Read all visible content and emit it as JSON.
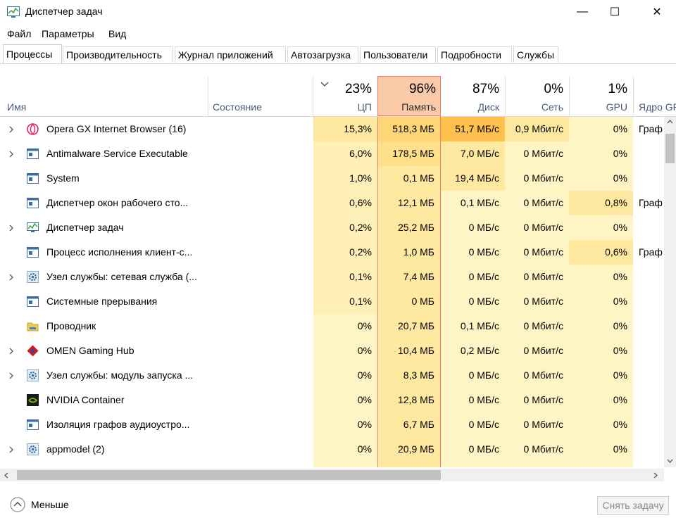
{
  "window": {
    "title": "Диспетчер задач",
    "minimize_glyph": "—",
    "maximize_glyph": "☐",
    "close_glyph": "✕"
  },
  "menu": [
    "Файл",
    "Параметры",
    "Вид"
  ],
  "tabs": [
    "Процессы",
    "Производительность",
    "Журнал приложений",
    "Автозагрузка",
    "Пользователи",
    "Подробности",
    "Службы"
  ],
  "active_tab": "Процессы",
  "columns": {
    "name": "Имя",
    "status": "Состояние",
    "cpu": {
      "pct": "23%",
      "label": "ЦП"
    },
    "mem": {
      "pct": "96%",
      "label": "Память"
    },
    "disk": {
      "pct": "87%",
      "label": "Диск"
    },
    "net": {
      "pct": "0%",
      "label": "Сеть"
    },
    "gpu": {
      "pct": "1%",
      "label": "GPU"
    },
    "gpu_engine": "Ядро GP"
  },
  "processes": [
    {
      "expand": true,
      "icon": "opera-gx-icon",
      "name": "Opera GX Internet Browser (16)",
      "cpu": "15,3%",
      "mem": "518,3 МБ",
      "disk": "51,7 МБ/с",
      "net": "0,9 Мбит/с",
      "gpu": "0%",
      "engine": "Граф"
    },
    {
      "expand": true,
      "icon": "app-window-icon",
      "name": "Antimalware Service Executable",
      "cpu": "6,0%",
      "mem": "178,5 МБ",
      "disk": "7,0 МБ/с",
      "net": "0 Мбит/с",
      "gpu": "0%",
      "engine": ""
    },
    {
      "expand": false,
      "icon": "app-window-icon",
      "name": "System",
      "cpu": "1,0%",
      "mem": "0,1 МБ",
      "disk": "19,4 МБ/с",
      "net": "0 Мбит/с",
      "gpu": "0%",
      "engine": ""
    },
    {
      "expand": false,
      "icon": "app-window-icon",
      "name": "Диспетчер окон рабочего сто...",
      "cpu": "0,6%",
      "mem": "12,1 МБ",
      "disk": "0,1 МБ/с",
      "net": "0 Мбит/с",
      "gpu": "0,8%",
      "engine": "Граф"
    },
    {
      "expand": true,
      "icon": "task-manager-icon",
      "name": "Диспетчер задач",
      "cpu": "0,2%",
      "mem": "25,2 МБ",
      "disk": "0 МБ/с",
      "net": "0 Мбит/с",
      "gpu": "0%",
      "engine": ""
    },
    {
      "expand": false,
      "icon": "app-window-icon",
      "name": "Процесс исполнения клиент-с...",
      "cpu": "0,2%",
      "mem": "1,0 МБ",
      "disk": "0 МБ/с",
      "net": "0 Мбит/с",
      "gpu": "0,6%",
      "engine": "Граф"
    },
    {
      "expand": true,
      "icon": "service-gear-icon",
      "name": "Узел службы: сетевая служба (...",
      "cpu": "0,1%",
      "mem": "7,4 МБ",
      "disk": "0 МБ/с",
      "net": "0 Мбит/с",
      "gpu": "0%",
      "engine": ""
    },
    {
      "expand": false,
      "icon": "app-window-icon",
      "name": "Системные прерывания",
      "cpu": "0,1%",
      "mem": "0 МБ",
      "disk": "0 МБ/с",
      "net": "0 Мбит/с",
      "gpu": "0%",
      "engine": ""
    },
    {
      "expand": false,
      "icon": "explorer-folder-icon",
      "name": "Проводник",
      "cpu": "0%",
      "mem": "20,7 МБ",
      "disk": "0,1 МБ/с",
      "net": "0 Мбит/с",
      "gpu": "0%",
      "engine": ""
    },
    {
      "expand": true,
      "icon": "omen-icon",
      "name": "OMEN Gaming Hub",
      "cpu": "0%",
      "mem": "10,4 МБ",
      "disk": "0,2 МБ/с",
      "net": "0 Мбит/с",
      "gpu": "0%",
      "engine": ""
    },
    {
      "expand": true,
      "icon": "service-gear-icon",
      "name": "Узел службы: модуль запуска ...",
      "cpu": "0%",
      "mem": "8,3 МБ",
      "disk": "0 МБ/с",
      "net": "0 Мбит/с",
      "gpu": "0%",
      "engine": ""
    },
    {
      "expand": false,
      "icon": "nvidia-icon",
      "name": "NVIDIA Container",
      "cpu": "0%",
      "mem": "12,8 МБ",
      "disk": "0 МБ/с",
      "net": "0 Мбит/с",
      "gpu": "0%",
      "engine": ""
    },
    {
      "expand": false,
      "icon": "app-window-icon",
      "name": "Изоляция графов аудиоустро...",
      "cpu": "0%",
      "mem": "6,7 МБ",
      "disk": "0 МБ/с",
      "net": "0 Мбит/с",
      "gpu": "0%",
      "engine": ""
    },
    {
      "expand": true,
      "icon": "service-gear-icon",
      "name": "appmodel (2)",
      "cpu": "0%",
      "mem": "20,9 МБ",
      "disk": "0 МБ/с",
      "net": "0 Мбит/с",
      "gpu": "0%",
      "engine": ""
    }
  ],
  "footer": {
    "fewer_details": "Меньше",
    "end_task": "Снять задачу"
  },
  "colors": {
    "heat_light": "#fff4c4",
    "heat_mid": "#ffe8a0",
    "heat_strong": "#ffd776",
    "heat_max": "#ffc04d",
    "mem_header": "#f9c9a8",
    "mem_border": "#e8806a"
  }
}
